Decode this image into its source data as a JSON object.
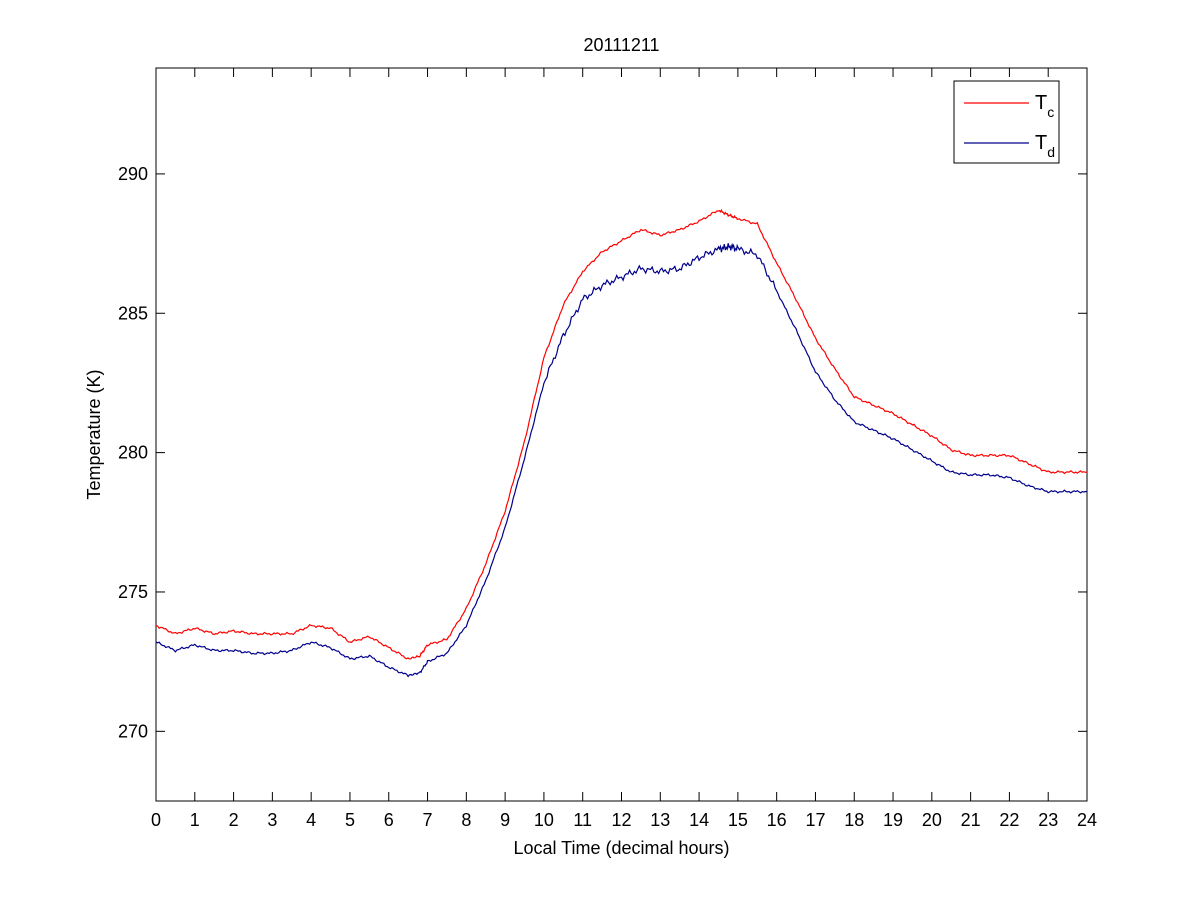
{
  "chart_data": {
    "type": "line",
    "title": "20111211",
    "xlabel": "Local Time (decimal hours)",
    "ylabel": "Temperature (K)",
    "xlim": [
      0,
      24
    ],
    "ylim": [
      267.5,
      293.8
    ],
    "xticks": [
      "0",
      "1",
      "2",
      "3",
      "4",
      "5",
      "6",
      "7",
      "8",
      "9",
      "10",
      "11",
      "12",
      "13",
      "14",
      "15",
      "16",
      "17",
      "18",
      "19",
      "20",
      "21",
      "22",
      "23",
      "24"
    ],
    "yticks": [
      "270",
      "275",
      "280",
      "285",
      "290"
    ],
    "grid": false,
    "legend_position": "top-right",
    "series": [
      {
        "name": "T",
        "subscript": "c",
        "color": "#ff0000",
        "x": [
          0,
          0.5,
          1,
          1.5,
          2,
          2.5,
          3,
          3.5,
          4,
          4.5,
          5,
          5.5,
          6,
          6.5,
          6.8,
          7,
          7.5,
          8,
          8.5,
          9,
          9.5,
          10,
          10.5,
          11,
          11.5,
          12,
          12.5,
          13,
          13.5,
          14,
          14.5,
          14.8,
          15,
          15.5,
          16,
          16.5,
          17,
          17.5,
          18,
          18.5,
          19,
          19.5,
          20,
          20.5,
          21,
          21.5,
          22,
          22.5,
          23,
          23.5,
          24
        ],
        "y": [
          273.8,
          273.5,
          273.7,
          273.5,
          273.6,
          273.5,
          273.5,
          273.5,
          273.8,
          273.7,
          273.2,
          273.4,
          273.0,
          272.6,
          272.7,
          273.1,
          273.3,
          274.4,
          276.0,
          277.9,
          280.4,
          283.4,
          285.3,
          286.5,
          287.2,
          287.6,
          288.0,
          287.8,
          288.0,
          288.3,
          288.7,
          288.5,
          288.4,
          288.2,
          286.8,
          285.5,
          284.1,
          283.0,
          282.0,
          281.7,
          281.4,
          281.0,
          280.6,
          280.1,
          279.9,
          279.9,
          279.9,
          279.6,
          279.3,
          279.3,
          279.3
        ]
      },
      {
        "name": "T",
        "subscript": "d",
        "color": "#00008b",
        "x": [
          0,
          0.5,
          1,
          1.5,
          2,
          2.5,
          3,
          3.5,
          4,
          4.5,
          5,
          5.5,
          6,
          6.5,
          6.8,
          7,
          7.5,
          8,
          8.5,
          9,
          9.5,
          10,
          10.5,
          11,
          11.5,
          12,
          12.5,
          13,
          13.5,
          14,
          14.5,
          14.8,
          15,
          15.5,
          16,
          16.5,
          17,
          17.5,
          18,
          18.5,
          19,
          19.5,
          20,
          20.5,
          21,
          21.5,
          22,
          22.5,
          23,
          23.5,
          24
        ],
        "y": [
          273.2,
          272.9,
          273.1,
          272.9,
          272.9,
          272.8,
          272.8,
          272.9,
          273.2,
          273.0,
          272.6,
          272.7,
          272.3,
          272.0,
          272.1,
          272.5,
          272.8,
          273.8,
          275.4,
          277.3,
          279.8,
          282.5,
          284.2,
          285.5,
          286.0,
          286.3,
          286.6,
          286.5,
          286.6,
          287.0,
          287.3,
          287.4,
          287.3,
          287.1,
          285.8,
          284.4,
          282.9,
          281.9,
          281.1,
          280.8,
          280.5,
          280.1,
          279.7,
          279.3,
          279.2,
          279.2,
          279.1,
          278.8,
          278.6,
          278.6,
          278.6
        ]
      }
    ]
  }
}
